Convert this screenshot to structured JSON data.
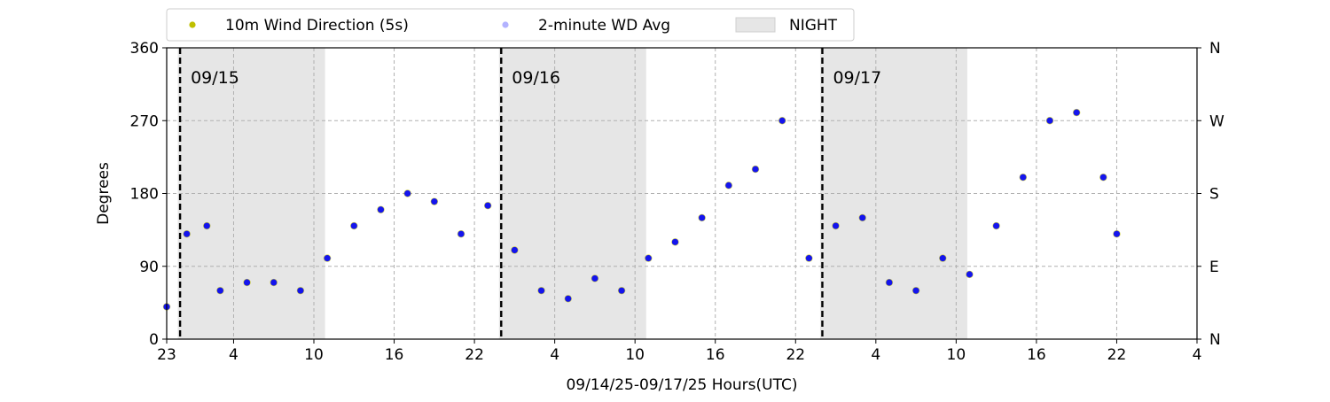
{
  "chart_data": {
    "type": "scatter",
    "title": "",
    "xlabel": "09/14/25-09/17/25  Hours(UTC)",
    "ylabel": "Degrees",
    "ylim": [
      0,
      360
    ],
    "xlim_hours_utc": [
      "2025-09-14 23:00",
      "2025-09-18 04:00"
    ],
    "x_tick_labels": [
      "23",
      "4",
      "10",
      "16",
      "22",
      "4",
      "10",
      "16",
      "22",
      "4",
      "10",
      "16",
      "22",
      "4"
    ],
    "x_ticks_utc": [
      "2025-09-14 23:00",
      "2025-09-15 04:00",
      "2025-09-15 10:00",
      "2025-09-15 16:00",
      "2025-09-15 22:00",
      "2025-09-16 04:00",
      "2025-09-16 10:00",
      "2025-09-16 16:00",
      "2025-09-16 22:00",
      "2025-09-17 04:00",
      "2025-09-17 10:00",
      "2025-09-17 16:00",
      "2025-09-17 22:00",
      "2025-09-18 04:00"
    ],
    "y_ticks": [
      0,
      90,
      180,
      270,
      360
    ],
    "y_tick_labels": [
      "0",
      "90",
      "180",
      "270",
      "360"
    ],
    "right_axis_labels": [
      "N",
      "E",
      "S",
      "W",
      "N"
    ],
    "grid": true,
    "legend_position": "top-left (above plot)",
    "legend": [
      {
        "label": "10m Wind Direction (5s)",
        "color": "#bfbf00",
        "kind": "marker"
      },
      {
        "label": "2-minute WD Avg",
        "color": "#0000ff",
        "kind": "marker"
      },
      {
        "label": "NIGHT",
        "color": "#e6e6e6",
        "kind": "patch"
      }
    ],
    "day_markers": [
      {
        "label": "09/15",
        "time_utc": "2025-09-15 00:00"
      },
      {
        "label": "09/16",
        "time_utc": "2025-09-16 00:00"
      },
      {
        "label": "09/17",
        "time_utc": "2025-09-17 00:00"
      }
    ],
    "night_periods_utc": [
      [
        "2025-09-14 23:50",
        "2025-09-15 10:50"
      ],
      [
        "2025-09-15 23:50",
        "2025-09-16 10:50"
      ],
      [
        "2025-09-16 23:50",
        "2025-09-17 10:50"
      ]
    ],
    "series": [
      {
        "name": "10m Wind Direction (5s)",
        "color": "#bfbf00",
        "x_utc": [
          "2025-09-14 23:00",
          "2025-09-15 00:30",
          "2025-09-15 02:00",
          "2025-09-15 03:00",
          "2025-09-15 05:00",
          "2025-09-15 07:00",
          "2025-09-15 09:00",
          "2025-09-15 11:00",
          "2025-09-15 13:00",
          "2025-09-15 15:00",
          "2025-09-15 17:00",
          "2025-09-15 19:00",
          "2025-09-15 21:00",
          "2025-09-15 23:00",
          "2025-09-16 01:00",
          "2025-09-16 03:00",
          "2025-09-16 05:00",
          "2025-09-16 07:00",
          "2025-09-16 09:00",
          "2025-09-16 11:00",
          "2025-09-16 13:00",
          "2025-09-16 15:00",
          "2025-09-16 17:00",
          "2025-09-16 19:00",
          "2025-09-16 21:00",
          "2025-09-16 23:00",
          "2025-09-17 01:00",
          "2025-09-17 03:00",
          "2025-09-17 05:00",
          "2025-09-17 07:00",
          "2025-09-17 09:00",
          "2025-09-17 11:00",
          "2025-09-17 13:00",
          "2025-09-17 15:00",
          "2025-09-17 17:00",
          "2025-09-17 19:00",
          "2025-09-17 21:00",
          "2025-09-17 22:00"
        ],
        "y": [
          40,
          130,
          140,
          60,
          70,
          70,
          60,
          100,
          140,
          160,
          180,
          170,
          130,
          165,
          110,
          60,
          50,
          75,
          60,
          100,
          120,
          150,
          190,
          210,
          270,
          100,
          140,
          150,
          70,
          60,
          100,
          80,
          140,
          200,
          270,
          280,
          200,
          130
        ]
      },
      {
        "name": "2-minute WD Avg",
        "color": "#0000ff",
        "x_utc": [
          "2025-09-14 23:00",
          "2025-09-15 00:30",
          "2025-09-15 02:00",
          "2025-09-15 03:00",
          "2025-09-15 05:00",
          "2025-09-15 07:00",
          "2025-09-15 09:00",
          "2025-09-15 11:00",
          "2025-09-15 13:00",
          "2025-09-15 15:00",
          "2025-09-15 17:00",
          "2025-09-15 19:00",
          "2025-09-15 21:00",
          "2025-09-15 23:00",
          "2025-09-16 01:00",
          "2025-09-16 03:00",
          "2025-09-16 05:00",
          "2025-09-16 07:00",
          "2025-09-16 09:00",
          "2025-09-16 11:00",
          "2025-09-16 13:00",
          "2025-09-16 15:00",
          "2025-09-16 17:00",
          "2025-09-16 19:00",
          "2025-09-16 21:00",
          "2025-09-16 23:00",
          "2025-09-17 01:00",
          "2025-09-17 03:00",
          "2025-09-17 05:00",
          "2025-09-17 07:00",
          "2025-09-17 09:00",
          "2025-09-17 11:00",
          "2025-09-17 13:00",
          "2025-09-17 15:00",
          "2025-09-17 17:00",
          "2025-09-17 19:00",
          "2025-09-17 21:00",
          "2025-09-17 22:00"
        ],
        "y": [
          40,
          130,
          140,
          60,
          70,
          70,
          60,
          100,
          140,
          160,
          180,
          170,
          130,
          165,
          110,
          60,
          50,
          75,
          60,
          100,
          120,
          150,
          190,
          210,
          270,
          100,
          140,
          150,
          70,
          60,
          100,
          80,
          140,
          200,
          270,
          280,
          200,
          130
        ]
      }
    ]
  }
}
